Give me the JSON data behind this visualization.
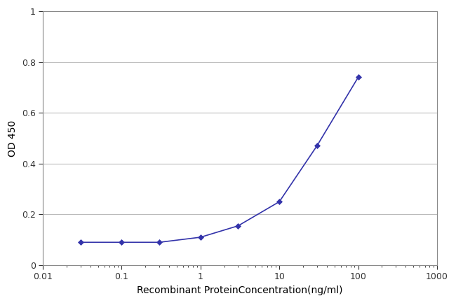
{
  "x": [
    0.03,
    0.1,
    0.3,
    1.0,
    3.0,
    10.0,
    30.0,
    100.0
  ],
  "y": [
    0.09,
    0.09,
    0.09,
    0.11,
    0.155,
    0.25,
    0.47,
    0.74
  ],
  "line_color": "#3333aa",
  "marker_color": "#3333aa",
  "marker_style": "D",
  "marker_size": 4,
  "line_width": 1.2,
  "xlabel": "Recombinant ProteinConcentration(ng/ml)",
  "ylabel": "OD 450",
  "ylim": [
    0,
    1
  ],
  "yticks": [
    0,
    0.2,
    0.4,
    0.6,
    0.8,
    1
  ],
  "xtick_labels": [
    "0.01",
    "0.1",
    "1",
    "10",
    "100",
    "1000"
  ],
  "xtick_values": [
    0.01,
    0.1,
    1,
    10,
    100,
    1000
  ],
  "grid_color": "#bbbbbb",
  "background_color": "#ffffff",
  "plot_bg_color": "#ffffff",
  "font_size_axis_label": 10,
  "font_size_ticks": 9,
  "spine_color": "#888888"
}
